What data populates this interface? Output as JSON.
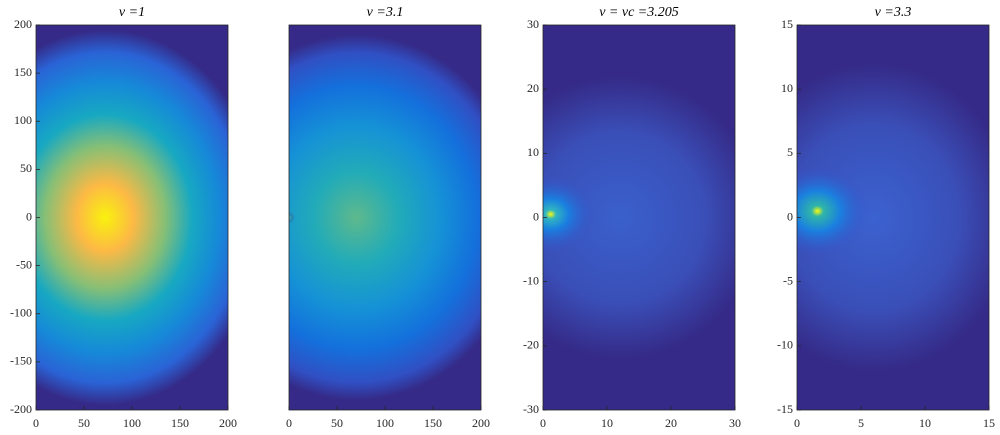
{
  "chart_data": [
    {
      "type": "heatmap",
      "title": "v =1",
      "xlim": [
        0,
        200
      ],
      "ylim": [
        -200,
        200
      ],
      "xticks": [
        0,
        50,
        100,
        150,
        200
      ],
      "yticks": [
        -200,
        -150,
        -100,
        -50,
        0,
        50,
        100,
        150,
        200
      ]
    },
    {
      "type": "heatmap",
      "title": "v =3.1",
      "xlim": [
        0,
        200
      ],
      "ylim": [
        -200,
        200
      ],
      "xticks": [
        0,
        50,
        100,
        150,
        200
      ]
    },
    {
      "type": "heatmap",
      "title": "v = vc =3.205",
      "xlim": [
        0,
        30
      ],
      "ylim": [
        -30,
        30
      ],
      "xticks": [
        0,
        10,
        20,
        30
      ],
      "yticks": [
        -30,
        -20,
        -10,
        0,
        10,
        20,
        30
      ]
    },
    {
      "type": "heatmap",
      "title": "v =3.3",
      "xlim": [
        0,
        15
      ],
      "ylim": [
        -15,
        15
      ],
      "xticks": [
        0,
        5,
        10,
        15
      ],
      "yticks": [
        -15,
        -10,
        -5,
        0,
        5,
        10,
        15
      ]
    }
  ]
}
